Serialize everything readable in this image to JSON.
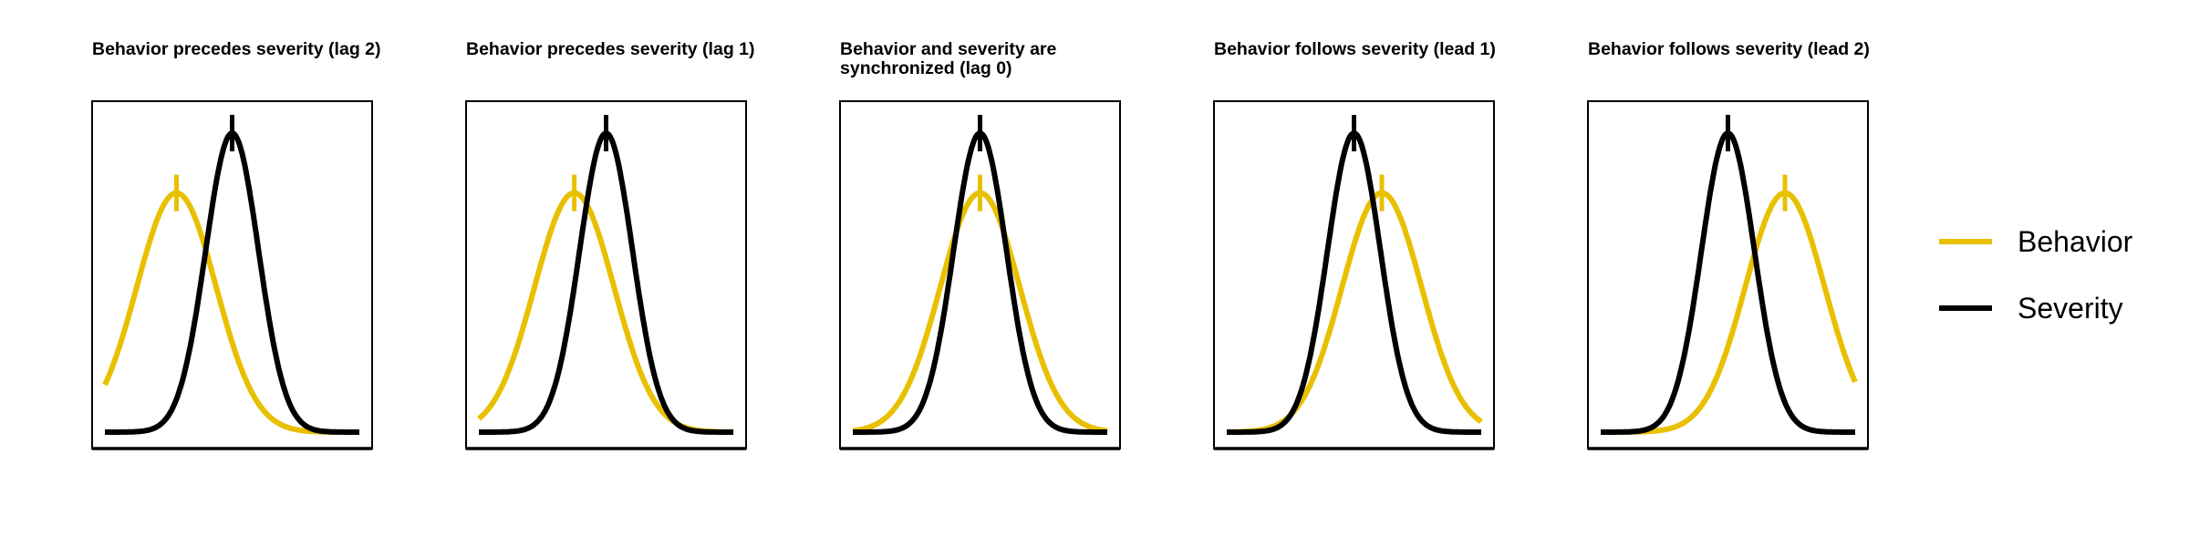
{
  "chart_data": {
    "type": "line",
    "x_range": [
      -4.8,
      4.8
    ],
    "legend": {
      "position": "right",
      "entries": [
        {
          "label": "Behavior",
          "color": "#E8C000"
        },
        {
          "label": "Severity",
          "color": "#000000"
        }
      ]
    },
    "series_style": {
      "behavior": {
        "color": "#E8C000",
        "amplitude": 0.8,
        "sd": 1.5
      },
      "severity": {
        "color": "#000000",
        "amplitude": 1.0,
        "sd": 1.0
      }
    },
    "panels": [
      {
        "title_lines": [
          "Behavior precedes severity (lag 2)"
        ],
        "behavior_center": -2.1,
        "severity_center": 0.0
      },
      {
        "title_lines": [
          "Behavior precedes severity (lag 1)"
        ],
        "behavior_center": -1.2,
        "severity_center": 0.0
      },
      {
        "title_lines": [
          "Behavior and severity are",
          "synchronized (lag 0)"
        ],
        "behavior_center": 0.0,
        "severity_center": 0.0
      },
      {
        "title_lines": [
          "Behavior follows severity (lead 1)"
        ],
        "behavior_center": 1.05,
        "severity_center": 0.0
      },
      {
        "title_lines": [
          "Behavior follows severity (lead 2)"
        ],
        "behavior_center": 2.15,
        "severity_center": 0.0
      }
    ]
  }
}
